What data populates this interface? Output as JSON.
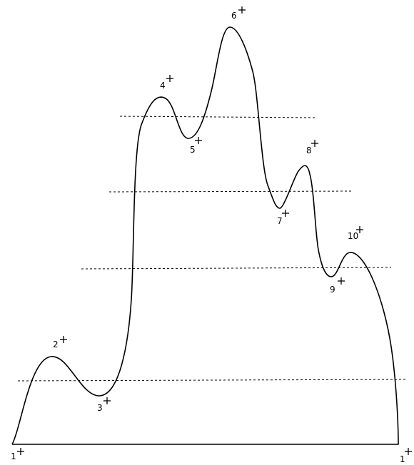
{
  "diagram": {
    "points": [
      {
        "label": "1"
      },
      {
        "label": "2"
      },
      {
        "label": "3"
      },
      {
        "label": "4"
      },
      {
        "label": "5"
      },
      {
        "label": "6"
      },
      {
        "label": "7"
      },
      {
        "label": "8"
      },
      {
        "label": "9"
      },
      {
        "label": "10"
      },
      {
        "label": "1"
      }
    ],
    "colors": {
      "stroke": "#000000",
      "background": "#ffffff"
    },
    "icons": {
      "marker": "plus-cross-icon"
    }
  }
}
